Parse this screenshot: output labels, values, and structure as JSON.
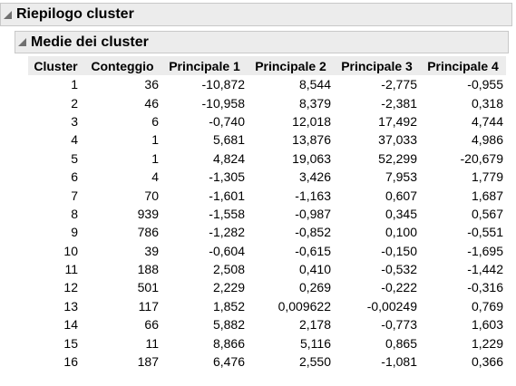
{
  "report": {
    "title": "Riepilogo cluster",
    "section_title": "Medie dei cluster"
  },
  "table": {
    "headers": [
      "Cluster",
      "Conteggio",
      "Principale 1",
      "Principale 2",
      "Principale 3",
      "Principale 4"
    ],
    "rows": [
      [
        "1",
        "36",
        "-10,872",
        "8,544",
        "-2,775",
        "-0,955"
      ],
      [
        "2",
        "46",
        "-10,958",
        "8,379",
        "-2,381",
        "0,318"
      ],
      [
        "3",
        "6",
        "-0,740",
        "12,018",
        "17,492",
        "4,744"
      ],
      [
        "4",
        "1",
        "5,681",
        "13,876",
        "37,033",
        "4,986"
      ],
      [
        "5",
        "1",
        "4,824",
        "19,063",
        "52,299",
        "-20,679"
      ],
      [
        "6",
        "4",
        "-1,305",
        "3,426",
        "7,953",
        "1,779"
      ],
      [
        "7",
        "70",
        "-1,601",
        "-1,163",
        "0,607",
        "1,687"
      ],
      [
        "8",
        "939",
        "-1,558",
        "-0,987",
        "0,345",
        "0,567"
      ],
      [
        "9",
        "786",
        "-1,282",
        "-0,852",
        "0,100",
        "-0,551"
      ],
      [
        "10",
        "39",
        "-0,604",
        "-0,615",
        "-0,150",
        "-1,695"
      ],
      [
        "11",
        "188",
        "2,508",
        "0,410",
        "-0,532",
        "-1,442"
      ],
      [
        "12",
        "501",
        "2,229",
        "0,269",
        "-0,222",
        "-0,316"
      ],
      [
        "13",
        "117",
        "1,852",
        "0,009622",
        "-0,00249",
        "0,769"
      ],
      [
        "14",
        "66",
        "5,882",
        "2,178",
        "-0,773",
        "1,603"
      ],
      [
        "15",
        "11",
        "8,866",
        "5,116",
        "0,865",
        "1,229"
      ],
      [
        "16",
        "187",
        "6,476",
        "2,550",
        "-1,081",
        "0,366"
      ]
    ]
  },
  "icons": {
    "disclosure": "disclosure-triangle-icon"
  }
}
